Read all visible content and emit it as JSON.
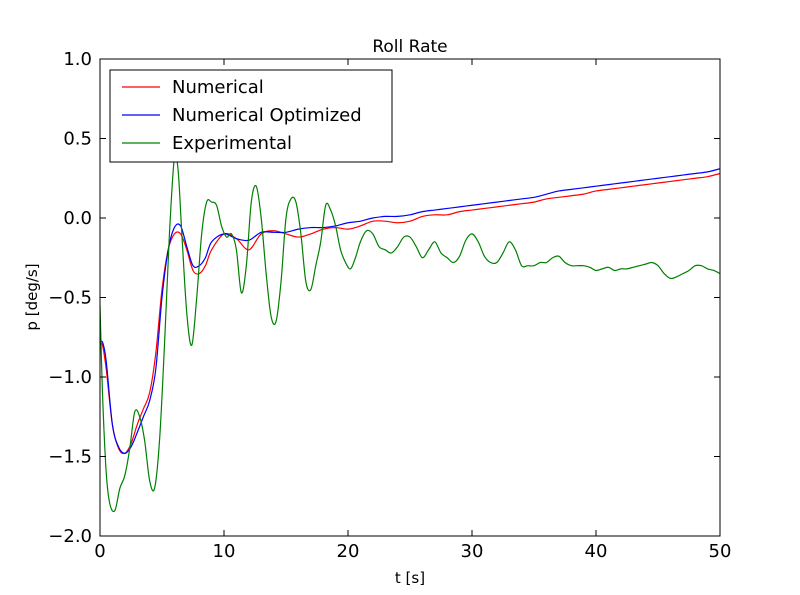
{
  "chart_data": {
    "type": "line",
    "title": "Roll Rate",
    "xlabel": "t [s]",
    "ylabel": "p [deg/s]",
    "xlim": [
      0,
      50
    ],
    "ylim": [
      -2.0,
      1.0
    ],
    "x_ticks": [
      0,
      10,
      20,
      30,
      40,
      50
    ],
    "x_tick_labels": [
      "0",
      "10",
      "20",
      "30",
      "40",
      "50"
    ],
    "y_ticks": [
      -2.0,
      -1.5,
      -1.0,
      -0.5,
      0.0,
      0.5,
      1.0
    ],
    "y_tick_labels": [
      "−2.0",
      "−1.5",
      "−1.0",
      "−0.5",
      "0.0",
      "0.5",
      "1.0"
    ],
    "grid": false,
    "legend_position": "top-left",
    "series": [
      {
        "name": "Numerical",
        "color": "#ff0000",
        "x": [
          0,
          0.2,
          0.5,
          1,
          1.5,
          2,
          2.5,
          3,
          3.5,
          4,
          4.5,
          5,
          5.5,
          6,
          6.5,
          7,
          7.5,
          8,
          8.5,
          9,
          10,
          11,
          12,
          13,
          14,
          15,
          16,
          17,
          18,
          19,
          20,
          21,
          22,
          23,
          24,
          25,
          26,
          27,
          28,
          29,
          30,
          31,
          32,
          33,
          34,
          35,
          36,
          37,
          38,
          39,
          40,
          41,
          42,
          43,
          44,
          45,
          46,
          47,
          48,
          49,
          50
        ],
        "y": [
          -0.8,
          -0.8,
          -0.95,
          -1.3,
          -1.45,
          -1.48,
          -1.42,
          -1.3,
          -1.2,
          -1.1,
          -0.85,
          -0.45,
          -0.2,
          -0.1,
          -0.1,
          -0.2,
          -0.33,
          -0.35,
          -0.3,
          -0.2,
          -0.1,
          -0.13,
          -0.2,
          -0.1,
          -0.08,
          -0.1,
          -0.12,
          -0.1,
          -0.07,
          -0.06,
          -0.07,
          -0.05,
          -0.02,
          -0.02,
          -0.03,
          -0.02,
          0.01,
          0.02,
          0.02,
          0.04,
          0.05,
          0.06,
          0.07,
          0.08,
          0.09,
          0.1,
          0.12,
          0.13,
          0.14,
          0.15,
          0.17,
          0.18,
          0.19,
          0.2,
          0.21,
          0.22,
          0.23,
          0.24,
          0.25,
          0.26,
          0.28
        ]
      },
      {
        "name": "Numerical Optimized",
        "color": "#0000ff",
        "x": [
          0,
          0.2,
          0.5,
          1,
          1.5,
          2,
          2.5,
          3,
          3.5,
          4,
          4.5,
          5,
          5.5,
          6,
          6.5,
          7,
          7.5,
          8,
          8.5,
          9,
          10,
          11,
          12,
          13,
          14,
          15,
          16,
          17,
          18,
          19,
          20,
          21,
          22,
          23,
          24,
          25,
          26,
          27,
          28,
          29,
          30,
          31,
          32,
          33,
          34,
          35,
          36,
          37,
          38,
          39,
          40,
          41,
          42,
          43,
          44,
          45,
          46,
          47,
          48,
          49,
          50
        ],
        "y": [
          -0.8,
          -0.78,
          -0.9,
          -1.3,
          -1.44,
          -1.48,
          -1.44,
          -1.35,
          -1.25,
          -1.15,
          -0.95,
          -0.5,
          -0.2,
          -0.06,
          -0.05,
          -0.18,
          -0.3,
          -0.3,
          -0.25,
          -0.15,
          -0.1,
          -0.13,
          -0.14,
          -0.09,
          -0.09,
          -0.09,
          -0.07,
          -0.06,
          -0.06,
          -0.05,
          -0.03,
          -0.02,
          0.0,
          0.01,
          0.01,
          0.02,
          0.04,
          0.05,
          0.06,
          0.07,
          0.08,
          0.09,
          0.1,
          0.11,
          0.12,
          0.13,
          0.15,
          0.17,
          0.18,
          0.19,
          0.2,
          0.21,
          0.22,
          0.23,
          0.24,
          0.25,
          0.26,
          0.27,
          0.28,
          0.29,
          0.31
        ]
      },
      {
        "name": "Experimental",
        "color": "#008000",
        "x": [
          0,
          0.2,
          0.5,
          0.8,
          1.2,
          1.6,
          2.0,
          2.4,
          2.8,
          3.2,
          3.6,
          4.0,
          4.4,
          4.8,
          5.2,
          5.6,
          6.0,
          6.3,
          6.6,
          7.0,
          7.4,
          7.8,
          8.2,
          8.6,
          9.0,
          9.4,
          9.8,
          10.2,
          10.6,
          11.0,
          11.4,
          11.8,
          12.2,
          12.6,
          13.0,
          13.4,
          13.8,
          14.2,
          14.6,
          15.0,
          15.4,
          15.8,
          16.2,
          16.6,
          17.0,
          17.4,
          17.8,
          18.2,
          18.6,
          19.0,
          19.4,
          19.8,
          20.2,
          20.6,
          21.0,
          21.5,
          22.0,
          22.5,
          23.0,
          23.5,
          24.0,
          24.5,
          25.0,
          25.5,
          26.0,
          26.5,
          27.0,
          27.5,
          28.0,
          28.5,
          29.0,
          29.5,
          30.0,
          30.5,
          31.0,
          31.5,
          32.0,
          32.5,
          33.0,
          33.5,
          34.0,
          34.5,
          35.0,
          35.5,
          36.0,
          36.5,
          37.0,
          37.5,
          38.0,
          38.5,
          39.0,
          39.5,
          40.0,
          40.5,
          41.0,
          41.5,
          42.0,
          42.5,
          43.0,
          43.5,
          44.0,
          44.5,
          45.0,
          45.5,
          46.0,
          46.5,
          47.0,
          47.5,
          48.0,
          48.5,
          49.0,
          49.5,
          50.0
        ],
        "y": [
          -0.55,
          -1.1,
          -1.6,
          -1.8,
          -1.84,
          -1.7,
          -1.62,
          -1.45,
          -1.22,
          -1.25,
          -1.4,
          -1.65,
          -1.7,
          -1.4,
          -0.8,
          -0.1,
          0.38,
          0.3,
          -0.1,
          -0.6,
          -0.8,
          -0.5,
          -0.1,
          0.1,
          0.1,
          0.08,
          -0.05,
          -0.12,
          -0.1,
          -0.2,
          -0.47,
          -0.3,
          0.1,
          0.2,
          0.0,
          -0.35,
          -0.62,
          -0.65,
          -0.4,
          0.0,
          0.12,
          0.1,
          -0.1,
          -0.4,
          -0.45,
          -0.3,
          -0.15,
          0.08,
          0.05,
          -0.05,
          -0.2,
          -0.28,
          -0.32,
          -0.25,
          -0.15,
          -0.08,
          -0.1,
          -0.18,
          -0.2,
          -0.22,
          -0.18,
          -0.12,
          -0.12,
          -0.18,
          -0.25,
          -0.2,
          -0.15,
          -0.22,
          -0.25,
          -0.28,
          -0.24,
          -0.14,
          -0.1,
          -0.15,
          -0.24,
          -0.28,
          -0.28,
          -0.22,
          -0.15,
          -0.2,
          -0.3,
          -0.3,
          -0.3,
          -0.28,
          -0.28,
          -0.25,
          -0.24,
          -0.28,
          -0.3,
          -0.3,
          -0.3,
          -0.31,
          -0.33,
          -0.32,
          -0.31,
          -0.33,
          -0.32,
          -0.32,
          -0.31,
          -0.3,
          -0.29,
          -0.28,
          -0.3,
          -0.35,
          -0.38,
          -0.37,
          -0.35,
          -0.33,
          -0.3,
          -0.3,
          -0.32,
          -0.33,
          -0.35
        ]
      }
    ]
  }
}
